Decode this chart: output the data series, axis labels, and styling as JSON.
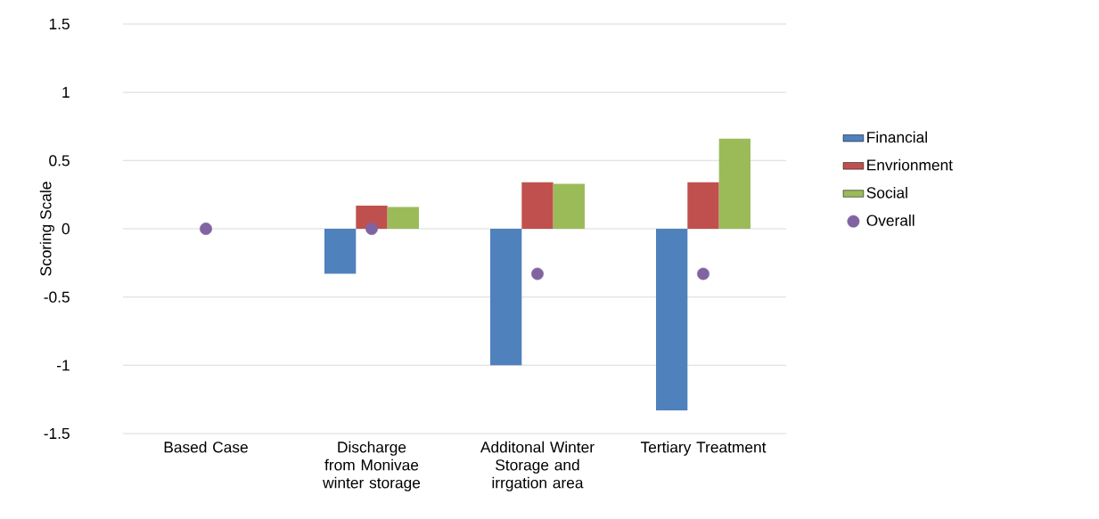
{
  "chart_data": {
    "type": "bar",
    "ylabel": "Scoring Scale",
    "categories": [
      "Based Case",
      "Discharge from Monivae winter storage",
      "Additonal Winter Storage and irrgation area",
      "Tertiary Treatment"
    ],
    "series": [
      {
        "name": "Financial",
        "color": "#4f81bd",
        "values": [
          0,
          -0.33,
          -1,
          -1.33
        ]
      },
      {
        "name": "Envrionment",
        "color": "#c0504d",
        "values": [
          0,
          0.17,
          0.34,
          0.34
        ]
      },
      {
        "name": "Social",
        "color": "#9bbb59",
        "values": [
          0,
          0.16,
          0.33,
          0.66
        ]
      },
      {
        "name": "Overall",
        "type": "scatter",
        "color": "#8064a2",
        "x": [
          "Based Case",
          "Discharge from Monivae winter storage",
          "Additonal Winter Storage and irrgation area",
          "Tertiary Treatment"
        ],
        "values": [
          0,
          0,
          -0.33,
          -0.33
        ]
      }
    ],
    "ylim": [
      -1.5,
      1.5
    ],
    "yticks": [
      -1.5,
      -1,
      -0.5,
      0,
      0.5,
      1,
      1.5
    ],
    "grid": "y",
    "legend": "right"
  }
}
